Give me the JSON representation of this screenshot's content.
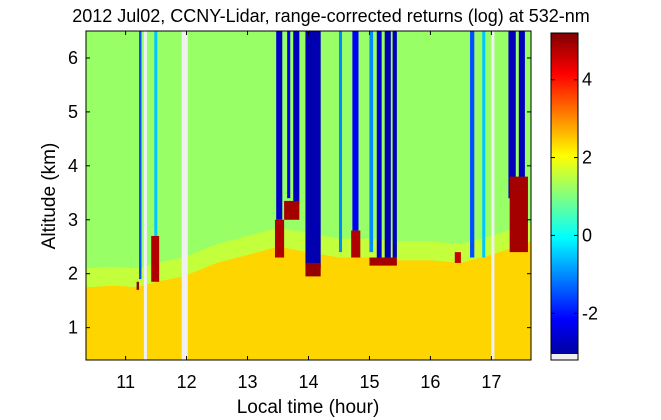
{
  "chart_data": {
    "type": "heatmap",
    "title": "2012 Jul02, CCNY-Lidar, range-corrected returns (log) at 532-nm",
    "xlabel": "Local time (hour)",
    "ylabel": "Altitude (km)",
    "xlim": [
      10.35,
      17.65
    ],
    "ylim": [
      0.4,
      6.5
    ],
    "xticks": [
      11,
      12,
      13,
      14,
      15,
      16,
      17
    ],
    "xtick_labels": [
      "11",
      "12",
      "13",
      "14",
      "15",
      "16",
      "17"
    ],
    "yticks": [
      1,
      2,
      3,
      4,
      5,
      6
    ],
    "ytick_labels": [
      "1",
      "2",
      "3",
      "4",
      "5",
      "6"
    ],
    "colorbar": {
      "colormap": "jet",
      "range": [
        -3.2,
        5.2
      ],
      "ticks": [
        -2,
        0,
        2,
        4
      ],
      "tick_labels": [
        "-2",
        "0",
        "2",
        "4"
      ]
    },
    "layers": {
      "boundary_layer_top_km": [
        [
          10.35,
          1.75
        ],
        [
          10.8,
          1.78
        ],
        [
          11.2,
          1.75
        ],
        [
          11.5,
          1.85
        ],
        [
          11.95,
          1.95
        ],
        [
          12.5,
          2.2
        ],
        [
          13.0,
          2.35
        ],
        [
          13.5,
          2.5
        ],
        [
          14.0,
          2.4
        ],
        [
          14.5,
          2.3
        ],
        [
          15.0,
          2.3
        ],
        [
          15.5,
          2.25
        ],
        [
          16.0,
          2.25
        ],
        [
          16.5,
          2.2
        ],
        [
          17.0,
          2.35
        ],
        [
          17.65,
          2.6
        ]
      ],
      "background_above_bl": 1.2,
      "background_within_bl": 2.4
    },
    "cloud_features": [
      {
        "x0": 11.18,
        "x1": 11.22,
        "base_km": 1.7,
        "top_km": 1.85,
        "value": 5.0
      },
      {
        "x0": 11.42,
        "x1": 11.55,
        "base_km": 1.85,
        "top_km": 2.7,
        "value": 4.8
      },
      {
        "x0": 13.45,
        "x1": 13.6,
        "base_km": 2.3,
        "top_km": 3.0,
        "value": 4.8
      },
      {
        "x0": 13.6,
        "x1": 13.85,
        "base_km": 3.0,
        "top_km": 3.35,
        "value": 4.9
      },
      {
        "x0": 13.95,
        "x1": 14.2,
        "base_km": 1.95,
        "top_km": 2.2,
        "value": 5.0
      },
      {
        "x0": 14.7,
        "x1": 14.85,
        "base_km": 2.3,
        "top_km": 2.8,
        "value": 4.8
      },
      {
        "x0": 15.0,
        "x1": 15.45,
        "base_km": 2.15,
        "top_km": 2.3,
        "value": 4.9
      },
      {
        "x0": 16.4,
        "x1": 16.5,
        "base_km": 2.2,
        "top_km": 2.4,
        "value": 4.6
      },
      {
        "x0": 17.3,
        "x1": 17.6,
        "base_km": 2.4,
        "top_km": 3.8,
        "value": 4.9
      }
    ],
    "attenuated_columns": [
      {
        "x0": 11.22,
        "x1": 11.26,
        "from_km": 1.9,
        "value": -1.5
      },
      {
        "x0": 11.47,
        "x1": 11.52,
        "from_km": 2.7,
        "value": -0.5
      },
      {
        "x0": 13.47,
        "x1": 13.57,
        "from_km": 3.0,
        "value": -2.6
      },
      {
        "x0": 13.65,
        "x1": 13.7,
        "from_km": 3.4,
        "value": -2.3
      },
      {
        "x0": 13.75,
        "x1": 13.85,
        "from_km": 3.3,
        "value": -2.7
      },
      {
        "x0": 13.95,
        "x1": 14.2,
        "from_km": 2.1,
        "value": -2.8
      },
      {
        "x0": 14.5,
        "x1": 14.55,
        "from_km": 2.4,
        "value": -1.0
      },
      {
        "x0": 14.72,
        "x1": 14.82,
        "from_km": 2.8,
        "value": -2.2
      },
      {
        "x0": 15.0,
        "x1": 15.06,
        "from_km": 2.4,
        "value": -1.0
      },
      {
        "x0": 15.12,
        "x1": 15.2,
        "from_km": 2.3,
        "value": -2.5
      },
      {
        "x0": 15.25,
        "x1": 15.35,
        "from_km": 2.3,
        "value": -2.8
      },
      {
        "x0": 15.38,
        "x1": 15.45,
        "from_km": 2.3,
        "value": -2.7
      },
      {
        "x0": 16.65,
        "x1": 16.72,
        "from_km": 2.3,
        "value": -1.5
      },
      {
        "x0": 16.85,
        "x1": 16.9,
        "from_km": 2.3,
        "value": -0.5
      },
      {
        "x0": 17.28,
        "x1": 17.4,
        "from_km": 3.4,
        "value": -2.7
      },
      {
        "x0": 17.45,
        "x1": 17.55,
        "from_km": 3.2,
        "value": -2.7
      }
    ],
    "data_gaps": [
      [
        11.3,
        11.35
      ],
      [
        11.92,
        12.02
      ],
      [
        17.0,
        17.05
      ]
    ]
  }
}
